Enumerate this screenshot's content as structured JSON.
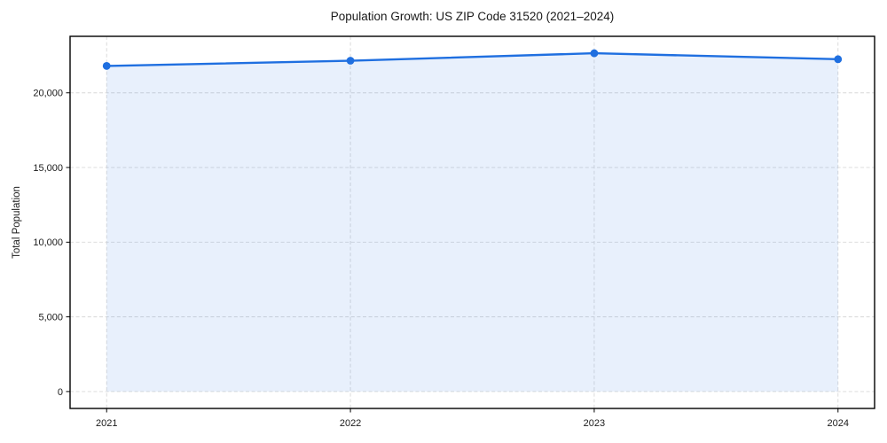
{
  "figure": {
    "background": "#ffffff"
  },
  "chart_data": {
    "type": "area",
    "title": "Population Growth: US ZIP Code 31520 (2021–2024)",
    "xlabel": "",
    "ylabel": "Total Population",
    "x": [
      2021,
      2022,
      2023,
      2024
    ],
    "x_tick_labels": [
      "2021",
      "2022",
      "2023",
      "2024"
    ],
    "series": [
      {
        "name": "Total Population",
        "values": [
          21800,
          22150,
          22650,
          22250
        ]
      }
    ],
    "yticks": [
      0,
      5000,
      10000,
      15000,
      20000
    ],
    "ytick_labels": [
      "0",
      "5,000",
      "10,000",
      "15,000",
      "20,000"
    ],
    "xlim": [
      2020.85,
      2024.15
    ],
    "ylim": [
      -1132,
      23782
    ],
    "grid": true,
    "grid_style": "dashed",
    "legend": false,
    "fill_to": 0,
    "marker": "circle",
    "colors": {
      "line": "#1f6fe0",
      "marker": "#1f6fe0",
      "fill": "#1f6fe0",
      "fill_opacity": 0.1,
      "grid": "#d8d8d8",
      "axis": "#000000",
      "text": "#1a1a1a"
    }
  }
}
